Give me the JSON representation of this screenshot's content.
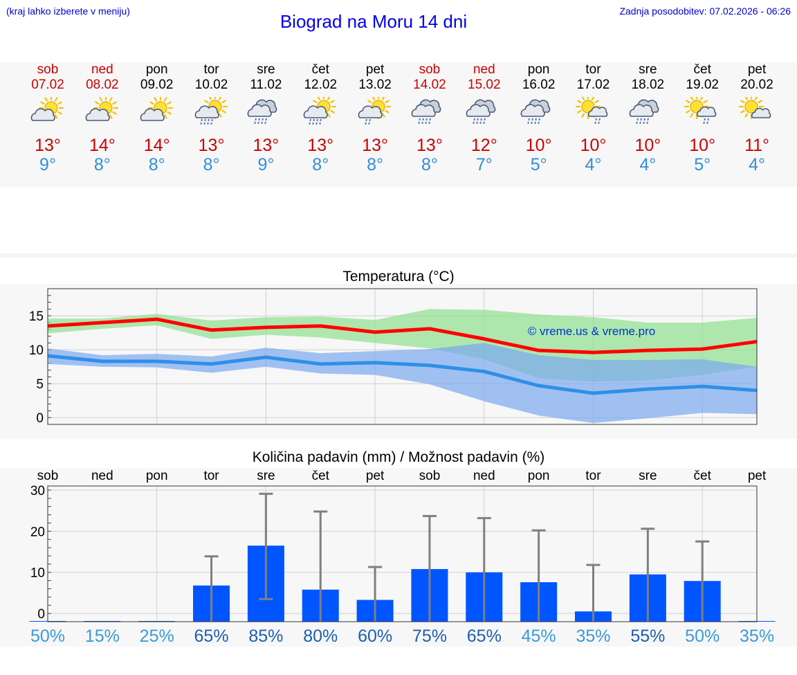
{
  "header": {
    "left_note": "(kraj lahko izberete v meniju)",
    "title": "Biograd na Moru 14 dni",
    "updated": "Zadnja posodobitev: 07.02.2026 - 06:26"
  },
  "colors": {
    "weekend": "#cc0000",
    "max_temp": "#cc0000",
    "min_temp": "#2f8fdc",
    "bar": "#0055ff"
  },
  "days": [
    {
      "name": "sob",
      "date": "07.02",
      "weekend": true,
      "icon": "sun-cloud-icon",
      "max": "13°",
      "min": "9°"
    },
    {
      "name": "ned",
      "date": "08.02",
      "weekend": true,
      "icon": "sun-cloud-icon",
      "max": "14°",
      "min": "8°"
    },
    {
      "name": "pon",
      "date": "09.02",
      "weekend": false,
      "icon": "sun-cloud-icon",
      "max": "14°",
      "min": "8°"
    },
    {
      "name": "tor",
      "date": "10.02",
      "weekend": false,
      "icon": "sun-rain-icon",
      "max": "13°",
      "min": "8°"
    },
    {
      "name": "sre",
      "date": "11.02",
      "weekend": false,
      "icon": "cloud-rain-icon",
      "max": "13°",
      "min": "9°"
    },
    {
      "name": "čet",
      "date": "12.02",
      "weekend": false,
      "icon": "sun-rain-icon",
      "max": "13°",
      "min": "8°"
    },
    {
      "name": "pet",
      "date": "13.02",
      "weekend": false,
      "icon": "sun-cloud-drizzle-icon",
      "max": "13°",
      "min": "8°"
    },
    {
      "name": "sob",
      "date": "14.02",
      "weekend": true,
      "icon": "cloud-rain-icon",
      "max": "13°",
      "min": "8°"
    },
    {
      "name": "ned",
      "date": "15.02",
      "weekend": true,
      "icon": "cloud-rain-icon",
      "max": "12°",
      "min": "7°"
    },
    {
      "name": "pon",
      "date": "16.02",
      "weekend": false,
      "icon": "cloud-rain-icon",
      "max": "10°",
      "min": "5°"
    },
    {
      "name": "tor",
      "date": "17.02",
      "weekend": false,
      "icon": "sun-small-cloud-rain-icon",
      "max": "10°",
      "min": "4°"
    },
    {
      "name": "sre",
      "date": "18.02",
      "weekend": false,
      "icon": "cloud-rain-icon",
      "max": "10°",
      "min": "4°"
    },
    {
      "name": "čet",
      "date": "19.02",
      "weekend": false,
      "icon": "sun-small-cloud-rain-icon",
      "max": "10°",
      "min": "5°"
    },
    {
      "name": "pet",
      "date": "20.02",
      "weekend": false,
      "icon": "sun-small-cloud-icon",
      "max": "11°",
      "min": "4°"
    }
  ],
  "chart_data": [
    {
      "type": "line",
      "title": "Temperatura (°C)",
      "watermark": "© vreme.us & vreme.pro",
      "categories": [
        "07.02",
        "08.02",
        "09.02",
        "10.02",
        "11.02",
        "12.02",
        "13.02",
        "14.02",
        "15.02",
        "16.02",
        "17.02",
        "18.02",
        "19.02",
        "20.02"
      ],
      "ylim": [
        -1,
        19
      ],
      "yticks": [
        0,
        5,
        10,
        15
      ],
      "series": [
        {
          "name": "max",
          "color": "#ff0000",
          "values": [
            13.5,
            14.0,
            14.5,
            12.9,
            13.3,
            13.5,
            12.6,
            13.1,
            11.6,
            9.9,
            9.6,
            9.9,
            10.1,
            11.2
          ],
          "band_low": [
            12.4,
            13.1,
            13.6,
            11.6,
            12.2,
            11.8,
            11.0,
            10.2,
            8.6,
            5.8,
            5.3,
            5.5,
            6.3,
            7.5
          ],
          "band_high": [
            14.6,
            14.6,
            15.3,
            14.3,
            14.8,
            14.9,
            14.4,
            16.0,
            15.9,
            15.2,
            14.8,
            14.0,
            14.0,
            14.7
          ],
          "band_color": "#8fe08f"
        },
        {
          "name": "min",
          "color": "#2f8fe8",
          "values": [
            9.1,
            8.3,
            8.3,
            7.9,
            8.9,
            7.9,
            8.1,
            7.7,
            6.8,
            4.7,
            3.6,
            4.2,
            4.6,
            4.0
          ],
          "band_low": [
            7.9,
            7.5,
            7.4,
            6.6,
            7.5,
            6.5,
            6.3,
            4.9,
            2.4,
            0.3,
            -0.8,
            -0.1,
            0.7,
            0.5
          ],
          "band_high": [
            10.2,
            9.2,
            9.4,
            9.0,
            10.3,
            9.5,
            9.8,
            10.1,
            11.0,
            9.2,
            8.5,
            8.5,
            8.6,
            7.5
          ],
          "band_color": "#7aa8f0"
        }
      ]
    },
    {
      "type": "bar",
      "title": "Količina padavin (mm) / Možnost padavin (%)",
      "categories": [
        "sob",
        "ned",
        "pon",
        "tor",
        "sre",
        "čet",
        "pet",
        "sob",
        "ned",
        "pon",
        "tor",
        "sre",
        "čet",
        "pet"
      ],
      "ylim": [
        -2,
        31
      ],
      "yticks": [
        0,
        10,
        20,
        30
      ],
      "values": [
        0,
        0,
        0,
        6.8,
        16.5,
        5.8,
        3.3,
        10.8,
        10.0,
        7.6,
        0.5,
        9.5,
        7.9,
        0
      ],
      "error_low": [
        0,
        0,
        0,
        0,
        3.5,
        0,
        0,
        0,
        0,
        0,
        0,
        0,
        0,
        0
      ],
      "error_high": [
        0,
        0,
        0,
        13.9,
        29.1,
        24.8,
        11.3,
        23.7,
        23.2,
        20.2,
        11.8,
        20.6,
        17.5,
        0
      ],
      "probabilities": [
        "50%",
        "15%",
        "25%",
        "65%",
        "85%",
        "80%",
        "60%",
        "75%",
        "65%",
        "45%",
        "35%",
        "55%",
        "50%",
        "35%"
      ]
    }
  ]
}
